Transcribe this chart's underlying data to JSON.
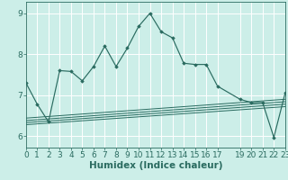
{
  "xlabel": "Humidex (Indice chaleur)",
  "background_color": "#cceee8",
  "grid_color": "#ffffff",
  "line_color": "#2a6b60",
  "main_x": [
    0,
    1,
    2,
    3,
    4,
    5,
    6,
    7,
    8,
    9,
    10,
    11,
    12,
    13,
    14,
    15,
    16,
    17,
    19,
    20,
    21,
    22,
    23
  ],
  "main_y": [
    7.3,
    6.78,
    6.35,
    7.6,
    7.58,
    7.35,
    7.7,
    8.2,
    7.7,
    8.15,
    8.68,
    9.0,
    8.55,
    8.4,
    7.78,
    7.75,
    7.75,
    7.22,
    6.9,
    6.82,
    6.82,
    5.97,
    7.05
  ],
  "band_lines": [
    [
      6.28,
      6.72
    ],
    [
      6.33,
      6.78
    ],
    [
      6.38,
      6.84
    ],
    [
      6.44,
      6.9
    ]
  ],
  "xlim": [
    0,
    23
  ],
  "ylim": [
    5.72,
    9.28
  ],
  "yticks": [
    6,
    7,
    8,
    9
  ],
  "xticks": [
    0,
    1,
    2,
    3,
    4,
    5,
    6,
    7,
    8,
    9,
    10,
    11,
    12,
    13,
    14,
    15,
    16,
    17,
    19,
    20,
    21,
    22,
    23
  ],
  "tick_fontsize": 6.5,
  "label_fontsize": 7.5
}
